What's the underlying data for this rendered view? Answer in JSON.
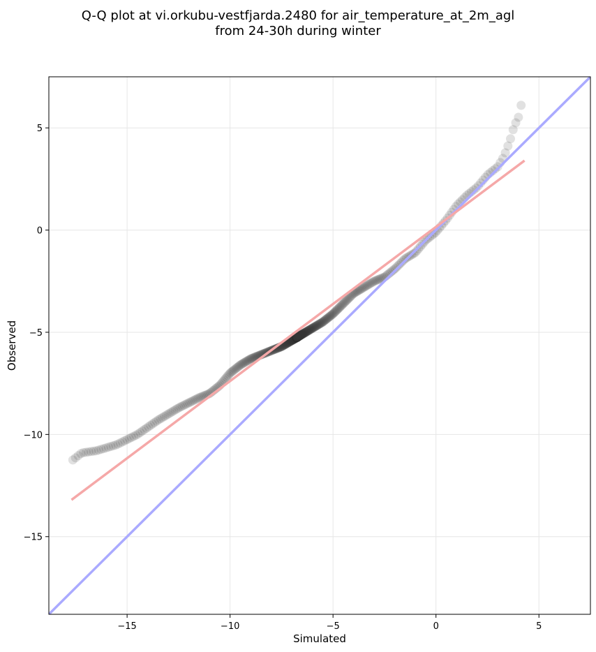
{
  "chart_data": {
    "type": "scatter",
    "title_line1": "Q-Q plot at vi.orkubu-vestfjarda.2480 for air_temperature_at_2m_agl",
    "title_line2": "from 24-30h during winter",
    "xlabel": "Simulated",
    "ylabel": "Observed",
    "xlim": [
      -18.8,
      7.5
    ],
    "ylim": [
      -18.8,
      7.5
    ],
    "xticks": [
      -15,
      -10,
      -5,
      0,
      5
    ],
    "yticks": [
      -15,
      -10,
      -5,
      0,
      5
    ],
    "xtick_labels": [
      "−15",
      "−10",
      "−5",
      "0",
      "5"
    ],
    "ytick_labels": [
      "−15",
      "−10",
      "−5",
      "0",
      "5"
    ],
    "grid": true,
    "identity_line": {
      "color": "#aaaaff"
    },
    "fit_line": {
      "x": [
        -17.7,
        4.3
      ],
      "y": [
        -13.2,
        3.4
      ],
      "color": "#f5a8a8"
    },
    "quantile_curve": {
      "x": [
        -17.7,
        -17.2,
        -16.5,
        -15.5,
        -14.5,
        -13.5,
        -12.5,
        -11.5,
        -11.0,
        -10.5,
        -10.0,
        -9.5,
        -9.0,
        -8.5,
        -8.0,
        -7.5,
        -7.0,
        -6.5,
        -6.0,
        -5.5,
        -5.0,
        -4.5,
        -4.0,
        -3.5,
        -3.0,
        -2.5,
        -2.0,
        -1.5,
        -1.0,
        -0.5,
        0.0,
        0.5,
        1.0,
        1.5,
        2.0,
        2.5,
        3.0,
        3.3,
        3.6,
        3.8,
        4.0,
        4.2
      ],
      "y": [
        -11.3,
        -10.9,
        -10.8,
        -10.5,
        -10.0,
        -9.3,
        -8.7,
        -8.2,
        -8.0,
        -7.6,
        -7.0,
        -6.6,
        -6.3,
        -6.1,
        -5.9,
        -5.7,
        -5.4,
        -5.1,
        -4.8,
        -4.5,
        -4.1,
        -3.6,
        -3.1,
        -2.8,
        -2.5,
        -2.3,
        -1.9,
        -1.4,
        -1.1,
        -0.5,
        -0.1,
        0.5,
        1.2,
        1.7,
        2.1,
        2.7,
        3.1,
        3.6,
        4.4,
        5.1,
        5.5,
        6.4
      ]
    },
    "point_count": 500,
    "point_color": "#333333"
  }
}
